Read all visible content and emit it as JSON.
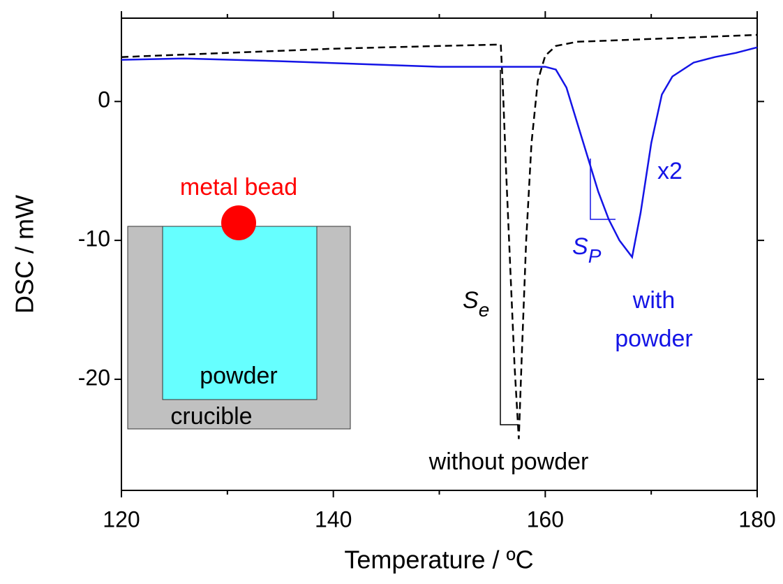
{
  "chart_data": {
    "type": "line",
    "xlabel": "Temperature / ºC",
    "ylabel": "DSC / mW",
    "xlim": [
      120,
      180
    ],
    "ylim": [
      -28,
      6
    ],
    "xticks": [
      120,
      140,
      160,
      180
    ],
    "xminorticks": [
      130,
      150,
      170
    ],
    "yticks": [
      -20,
      -10,
      0
    ],
    "series": [
      {
        "name": "without powder",
        "color": "#000000",
        "dashed": true,
        "x": [
          120,
          130,
          140,
          150,
          155.8,
          156.0,
          156.3,
          156.7,
          157.1,
          157.5,
          157.8,
          158.2,
          158.7,
          159.3,
          160,
          161,
          163,
          170,
          180
        ],
        "values": [
          3.2,
          3.5,
          3.8,
          4.0,
          4.1,
          1.0,
          -5,
          -12,
          -19,
          -24.3,
          -18,
          -10,
          -3,
          1.5,
          3.3,
          4.0,
          4.3,
          4.5,
          4.8
        ]
      },
      {
        "name": "with powder",
        "color": "#1414e6",
        "dashed": false,
        "x": [
          120,
          126,
          135,
          150,
          160,
          161,
          162,
          163,
          164,
          165,
          166,
          167,
          168.2,
          169,
          170,
          171,
          172,
          174,
          176,
          178,
          180
        ],
        "values": [
          3.0,
          3.1,
          2.9,
          2.5,
          2.5,
          2.3,
          1.0,
          -1.5,
          -4,
          -6.5,
          -8.5,
          -10,
          -11.2,
          -8,
          -3,
          0.5,
          1.8,
          2.8,
          3.2,
          3.5,
          3.9
        ]
      }
    ],
    "annotations": {
      "scale": "x2",
      "se": {
        "main": "S",
        "sub": "e"
      },
      "sp": {
        "main": "S",
        "sub": "P"
      },
      "bead": "metal bead",
      "powder": "powder",
      "crucible": "crucible"
    }
  }
}
